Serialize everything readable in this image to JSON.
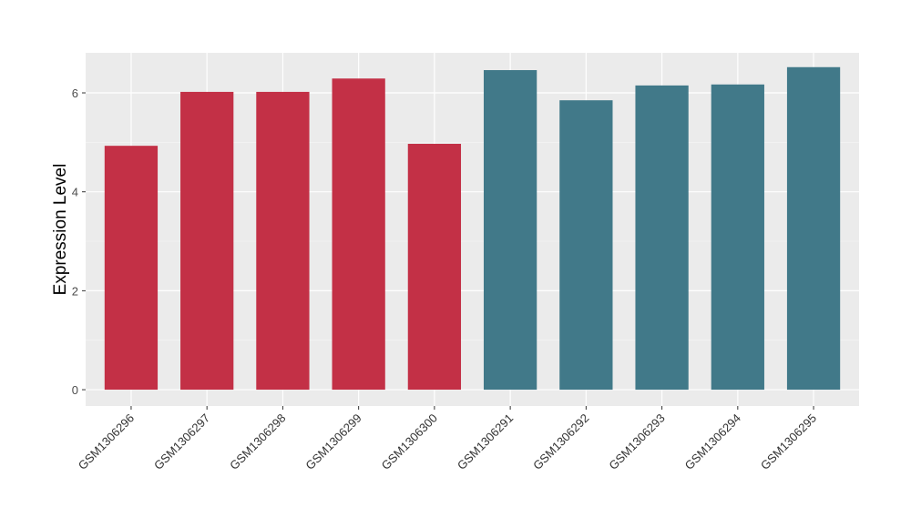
{
  "chart_data": {
    "type": "bar",
    "title": "",
    "xlabel": "",
    "ylabel": "Expression Level",
    "categories": [
      "GSM1306296",
      "GSM1306297",
      "GSM1306298",
      "GSM1306299",
      "GSM1306300",
      "GSM1306291",
      "GSM1306292",
      "GSM1306293",
      "GSM1306294",
      "GSM1306295"
    ],
    "values": [
      4.93,
      6.02,
      6.02,
      6.29,
      4.97,
      6.46,
      5.85,
      6.15,
      6.17,
      6.52
    ],
    "groups": [
      "group1",
      "group1",
      "group1",
      "group1",
      "group1",
      "group2",
      "group2",
      "group2",
      "group2",
      "group2"
    ],
    "group_colors": {
      "group1": "#C33046",
      "group2": "#417989"
    },
    "ylim": [
      -0.33,
      6.81
    ],
    "yticks": [
      0,
      2,
      4,
      6
    ],
    "grid": true,
    "legend": "none"
  }
}
